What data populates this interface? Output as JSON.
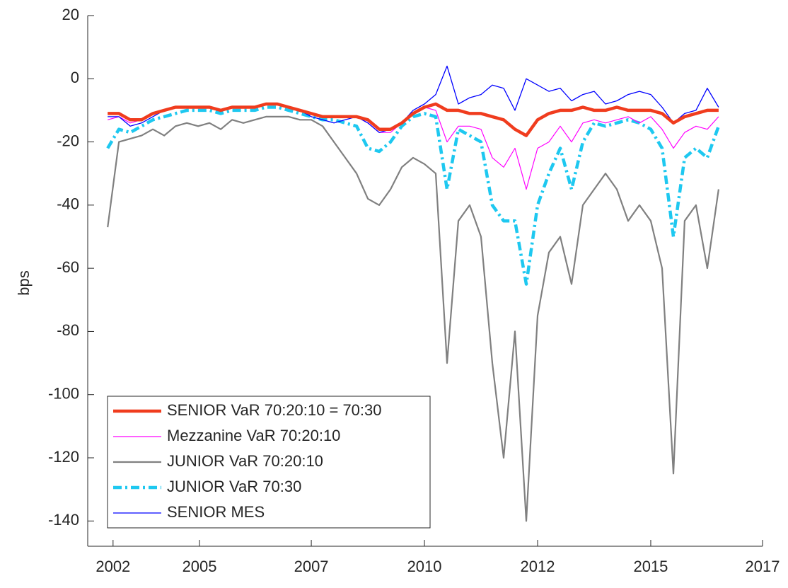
{
  "chart_data": {
    "type": "line",
    "ylabel": "bps",
    "x": [
      2003,
      2003.25,
      2003.5,
      2003.75,
      2004,
      2004.25,
      2004.5,
      2004.75,
      2005,
      2005.25,
      2005.5,
      2005.75,
      2006,
      2006.25,
      2006.5,
      2006.75,
      2007,
      2007.25,
      2007.5,
      2007.75,
      2008,
      2008.25,
      2008.5,
      2008.75,
      2009,
      2009.25,
      2009.5,
      2009.75,
      2010,
      2010.25,
      2010.5,
      2010.75,
      2011,
      2011.25,
      2011.5,
      2011.75,
      2012,
      2012.25,
      2012.5,
      2012.75,
      2013,
      2013.25,
      2013.5,
      2013.75,
      2014,
      2014.25,
      2014.5,
      2014.75,
      2015,
      2015.25,
      2015.5,
      2015.75,
      2016,
      2016.25,
      2016.5
    ],
    "series": [
      {
        "name": "SENIOR VaR 70:20:10 = 70:30",
        "color": "#f03c1e",
        "values": [
          -11,
          -11,
          -13,
          -13,
          -11,
          -10,
          -9,
          -9,
          -9,
          -9,
          -10,
          -9,
          -9,
          -9,
          -8,
          -8,
          -9,
          -10,
          -11,
          -12,
          -12,
          -12,
          -12,
          -13,
          -16,
          -16,
          -14,
          -11,
          -9,
          -8,
          -10,
          -10,
          -11,
          -11,
          -12,
          -13,
          -16,
          -18,
          -13,
          -11,
          -10,
          -10,
          -9,
          -10,
          -10,
          -9,
          -10,
          -10,
          -10,
          -11,
          -14,
          -12,
          -11,
          -10,
          -10
        ]
      },
      {
        "name": "Mezzanine VaR 70:20:10",
        "color": "#ff00ff",
        "values": [
          -13,
          -12,
          -14,
          -13,
          -11,
          -10,
          -9,
          -9,
          -9,
          -9,
          -10,
          -9,
          -9,
          -9,
          -8,
          -8,
          -9,
          -10,
          -11,
          -12,
          -12,
          -12,
          -12,
          -14,
          -17,
          -17,
          -14,
          -11,
          -9,
          -10,
          -20,
          -15,
          -15,
          -16,
          -25,
          -28,
          -22,
          -35,
          -22,
          -20,
          -15,
          -20,
          -14,
          -13,
          -14,
          -13,
          -12,
          -14,
          -12,
          -16,
          -22,
          -17,
          -15,
          -16,
          -12
        ]
      },
      {
        "name": "JUNIOR VaR 70:20:10",
        "color": "#808080",
        "values": [
          -47,
          -20,
          -19,
          -18,
          -16,
          -18,
          -15,
          -14,
          -15,
          -14,
          -16,
          -13,
          -14,
          -13,
          -12,
          -12,
          -12,
          -13,
          -13,
          -15,
          -20,
          -25,
          -30,
          -38,
          -40,
          -35,
          -28,
          -25,
          -27,
          -30,
          -90,
          -45,
          -40,
          -50,
          -90,
          -120,
          -80,
          -140,
          -75,
          -55,
          -50,
          -65,
          -40,
          -35,
          -30,
          -35,
          -45,
          -40,
          -45,
          -60,
          -125,
          -45,
          -40,
          -60,
          -35
        ]
      },
      {
        "name": "JUNIOR VaR 70:30",
        "color": "#1ec8f0",
        "values": [
          -22,
          -16,
          -17,
          -15,
          -13,
          -12,
          -11,
          -10,
          -10,
          -10,
          -11,
          -10,
          -10,
          -10,
          -9,
          -9,
          -10,
          -11,
          -12,
          -13,
          -13,
          -14,
          -15,
          -22,
          -23,
          -20,
          -15,
          -12,
          -11,
          -12,
          -35,
          -16,
          -18,
          -20,
          -40,
          -45,
          -45,
          -65,
          -40,
          -30,
          -22,
          -35,
          -20,
          -14,
          -15,
          -14,
          -13,
          -14,
          -16,
          -22,
          -50,
          -25,
          -22,
          -25,
          -15
        ]
      },
      {
        "name": "SENIOR MES",
        "color": "#0000ff",
        "values": [
          -12,
          -12,
          -15,
          -14,
          -12,
          -10,
          -9,
          -9,
          -9,
          -9,
          -10,
          -9,
          -9,
          -9,
          -8,
          -8,
          -9,
          -10,
          -12,
          -13,
          -14,
          -13,
          -12,
          -14,
          -17,
          -16,
          -14,
          -10,
          -8,
          -5,
          4,
          -8,
          -6,
          -5,
          -2,
          -3,
          -10,
          0,
          -2,
          -4,
          -3,
          -7,
          -5,
          -4,
          -8,
          -7,
          -5,
          -4,
          -5,
          -9,
          -14,
          -11,
          -10,
          -3,
          -9
        ]
      }
    ],
    "xlim": [
      2002.56,
      2017.47
    ],
    "xticks": [
      {
        "value": 2003.12,
        "label": "2002"
      },
      {
        "value": 2005.03,
        "label": "2005"
      },
      {
        "value": 2007.5,
        "label": "2007"
      },
      {
        "value": 2010,
        "label": "2010"
      },
      {
        "value": 2012.5,
        "label": "2012"
      },
      {
        "value": 2015,
        "label": "2015"
      },
      {
        "value": 2017.47,
        "label": "2017"
      }
    ],
    "ylim": [
      -148,
      20
    ],
    "yticks": [
      -140,
      -120,
      -100,
      -80,
      -60,
      -40,
      -20,
      0,
      20
    ],
    "legend": "lower left"
  }
}
